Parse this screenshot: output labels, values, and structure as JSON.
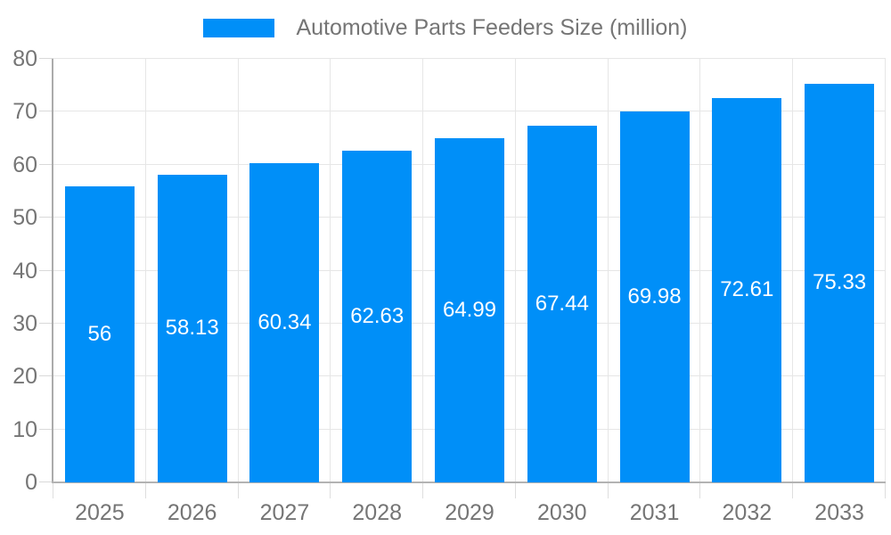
{
  "chart_data": {
    "type": "bar",
    "title": "Automotive Parts Feeders Size (million)",
    "categories": [
      "2025",
      "2026",
      "2027",
      "2028",
      "2029",
      "2030",
      "2031",
      "2032",
      "2033"
    ],
    "values": [
      56,
      58.13,
      60.34,
      62.63,
      64.99,
      67.44,
      69.98,
      72.61,
      75.33
    ],
    "value_labels": [
      "56",
      "58.13",
      "60.34",
      "62.63",
      "64.99",
      "67.44",
      "69.98",
      "72.61",
      "75.33"
    ],
    "ytick_labels": [
      "0",
      "10",
      "20",
      "30",
      "40",
      "50",
      "60",
      "70",
      "80"
    ],
    "yticks": [
      0,
      10,
      20,
      30,
      40,
      50,
      60,
      70,
      80
    ],
    "ylim": [
      0,
      80
    ],
    "xlabel": "",
    "ylabel": "",
    "grid": true,
    "legend_position": "top",
    "legend_entries": [
      "Automotive Parts Feeders Size (million)"
    ],
    "colors": {
      "bar": "#008FF8",
      "value_label": "#ffffff",
      "axis_text": "#757575",
      "gridline": "#e6e6e6",
      "axis_line": "#ababab"
    }
  }
}
